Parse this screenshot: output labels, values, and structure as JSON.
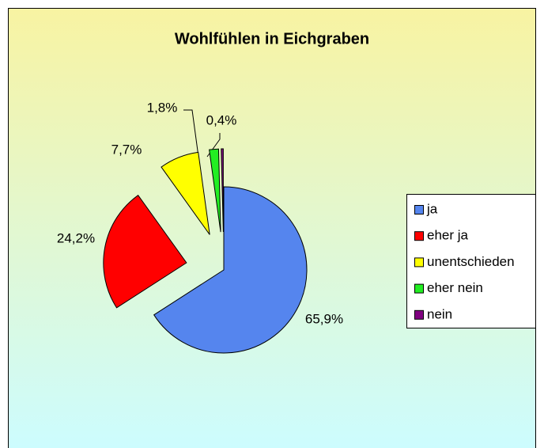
{
  "chart_data": {
    "type": "pie",
    "title": "Wohlfühlen in Eichgraben",
    "categories": [
      "ja",
      "eher ja",
      "unentschieden",
      "eher nein",
      "nein"
    ],
    "values": [
      65.9,
      24.2,
      7.7,
      1.8,
      0.4
    ],
    "value_labels": [
      "65,9%",
      "24,2%",
      "7,7%",
      "1,8%",
      "0,4%"
    ],
    "colors": [
      "#5585ee",
      "#ff0000",
      "#ffff00",
      "#22ee22",
      "#800080"
    ],
    "legend": "right"
  }
}
